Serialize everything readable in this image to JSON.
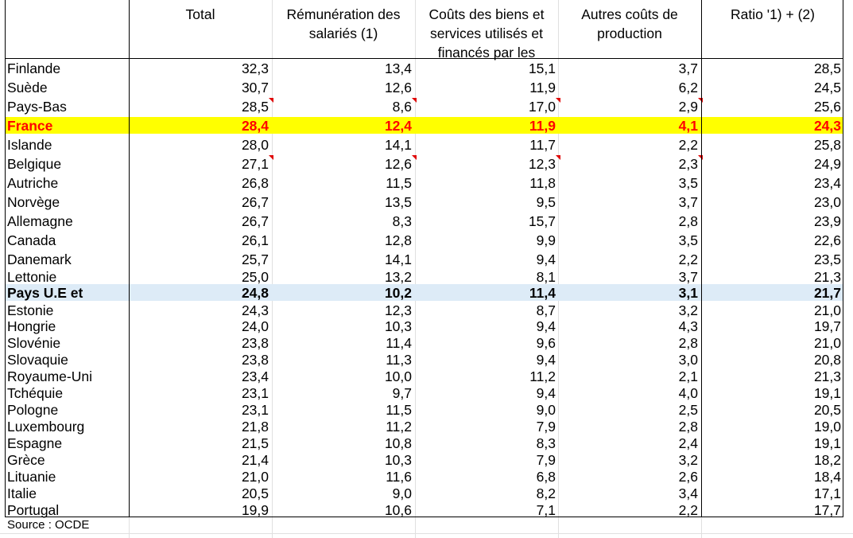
{
  "headers": {
    "total": "Total",
    "remuneration": "Rémunération des\nsalariés (1)",
    "couts_biens": "Coûts des biens et\nservices utilisés et\nfinancés par les",
    "autres_couts": "Autres coûts de\nproduction",
    "ratio": "Ratio '1) + (2)"
  },
  "rows": [
    {
      "country": "Finlande",
      "total": "32,3",
      "remuneration": "13,4",
      "couts_biens": "15,1",
      "autres_couts": "3,7",
      "ratio": "28,5"
    },
    {
      "country": "Suède",
      "total": "30,7",
      "remuneration": "12,6",
      "couts_biens": "11,9",
      "autres_couts": "6,2",
      "ratio": "24,5"
    },
    {
      "country": "Pays-Bas",
      "total": "28,5",
      "remuneration": "8,6",
      "couts_biens": "17,0",
      "autres_couts": "2,9",
      "ratio": "25,6"
    },
    {
      "country": "France",
      "total": "28,4",
      "remuneration": "12,4",
      "couts_biens": "11,9",
      "autres_couts": "4,1",
      "ratio": "24,3"
    },
    {
      "country": "Islande",
      "total": "28,0",
      "remuneration": "14,1",
      "couts_biens": "11,7",
      "autres_couts": "2,2",
      "ratio": "25,8"
    },
    {
      "country": "Belgique",
      "total": "27,1",
      "remuneration": "12,6",
      "couts_biens": "12,3",
      "autres_couts": "2,3",
      "ratio": "24,9"
    },
    {
      "country": "Autriche",
      "total": "26,8",
      "remuneration": "11,5",
      "couts_biens": "11,8",
      "autres_couts": "3,5",
      "ratio": "23,4"
    },
    {
      "country": "Norvège",
      "total": "26,7",
      "remuneration": "13,5",
      "couts_biens": "9,5",
      "autres_couts": "3,7",
      "ratio": "23,0"
    },
    {
      "country": "Allemagne",
      "total": "26,7",
      "remuneration": "8,3",
      "couts_biens": "15,7",
      "autres_couts": "2,8",
      "ratio": "23,9"
    },
    {
      "country": "Canada",
      "total": "26,1",
      "remuneration": "12,8",
      "couts_biens": "9,9",
      "autres_couts": "3,5",
      "ratio": "22,6"
    },
    {
      "country": "Danemark",
      "total": "25,7",
      "remuneration": "14,1",
      "couts_biens": "9,4",
      "autres_couts": "2,2",
      "ratio": "23,5"
    },
    {
      "country": "Lettonie",
      "total": "25,0",
      "remuneration": "13,2",
      "couts_biens": "8,1",
      "autres_couts": "3,7",
      "ratio": "21,3"
    },
    {
      "country": "Pays U.E et",
      "total": "24,8",
      "remuneration": "10,2",
      "couts_biens": "11,4",
      "autres_couts": "3,1",
      "ratio": "21,7"
    },
    {
      "country": "Estonie",
      "total": "24,3",
      "remuneration": "12,3",
      "couts_biens": "8,7",
      "autres_couts": "3,2",
      "ratio": "21,0"
    },
    {
      "country": "Hongrie",
      "total": "24,0",
      "remuneration": "10,3",
      "couts_biens": "9,4",
      "autres_couts": "4,3",
      "ratio": "19,7"
    },
    {
      "country": "Slovénie",
      "total": "23,8",
      "remuneration": "11,4",
      "couts_biens": "9,6",
      "autres_couts": "2,8",
      "ratio": "21,0"
    },
    {
      "country": "Slovaquie",
      "total": "23,8",
      "remuneration": "11,3",
      "couts_biens": "9,4",
      "autres_couts": "3,0",
      "ratio": "20,8"
    },
    {
      "country": "Royaume-Uni",
      "total": "23,4",
      "remuneration": "10,0",
      "couts_biens": "11,2",
      "autres_couts": "2,1",
      "ratio": "21,3"
    },
    {
      "country": "Tchéquie",
      "total": "23,1",
      "remuneration": "9,7",
      "couts_biens": "9,4",
      "autres_couts": "4,0",
      "ratio": "19,1"
    },
    {
      "country": "Pologne",
      "total": "23,1",
      "remuneration": "11,5",
      "couts_biens": "9,0",
      "autres_couts": "2,5",
      "ratio": "20,5"
    },
    {
      "country": "Luxembourg",
      "total": "21,8",
      "remuneration": "11,2",
      "couts_biens": "7,9",
      "autres_couts": "2,8",
      "ratio": "19,0"
    },
    {
      "country": "Espagne",
      "total": "21,5",
      "remuneration": "10,8",
      "couts_biens": "8,3",
      "autres_couts": "2,4",
      "ratio": "19,1"
    },
    {
      "country": "Grèce",
      "total": "21,4",
      "remuneration": "10,3",
      "couts_biens": "7,9",
      "autres_couts": "3,2",
      "ratio": "18,2"
    },
    {
      "country": "Lituanie",
      "total": "21,0",
      "remuneration": "11,6",
      "couts_biens": "6,8",
      "autres_couts": "2,6",
      "ratio": "18,4"
    },
    {
      "country": "Italie",
      "total": "20,5",
      "remuneration": "9,0",
      "couts_biens": "8,2",
      "autres_couts": "3,4",
      "ratio": "17,1"
    },
    {
      "country": "Portugal",
      "total": "19,9",
      "remuneration": "10,6",
      "couts_biens": "7,1",
      "autres_couts": "2,2",
      "ratio": "17,7"
    }
  ],
  "highlights": {
    "france_fill": "#ffff00",
    "france_text": "#ff0000",
    "eu_fill": "#ddebf7",
    "comment_marker": "#e00000"
  },
  "source": "Source : OCDE"
}
